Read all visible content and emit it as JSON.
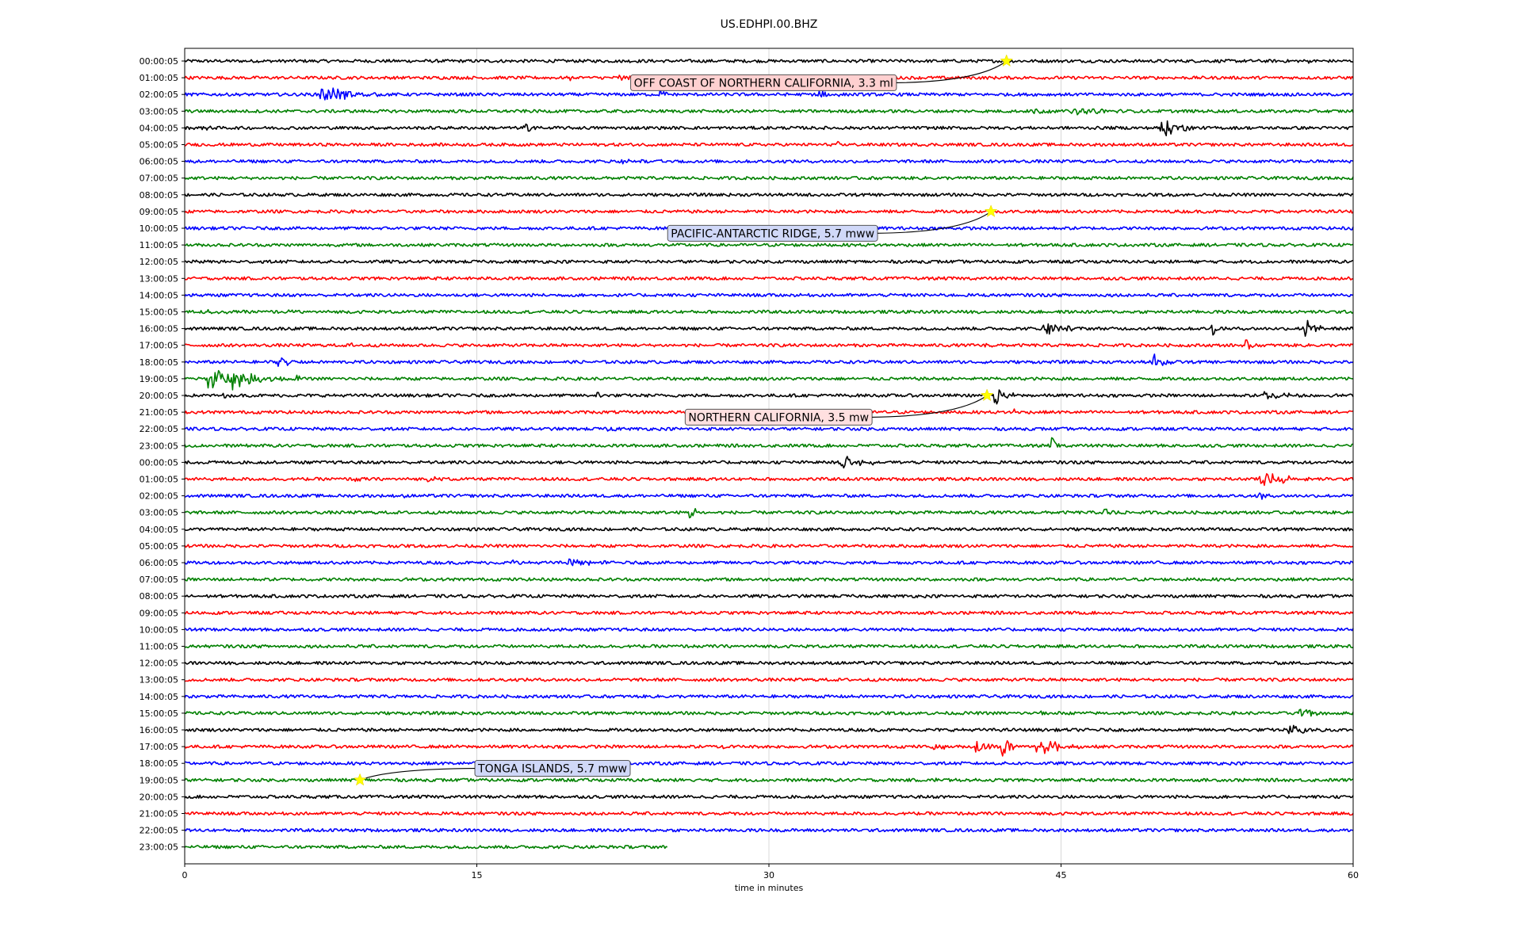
{
  "chart_data": {
    "type": "line",
    "subtype": "helicorder",
    "title": "US.EDHPI.00.BHZ",
    "xlabel": "time in minutes",
    "ylabel": "",
    "xlim": [
      0,
      60
    ],
    "x_ticks": [
      "0",
      "15",
      "30",
      "45",
      "60"
    ],
    "grid": "vertical lines at 15, 30, 45",
    "row_labels": [
      "00:00:05",
      "01:00:05",
      "02:00:05",
      "03:00:05",
      "04:00:05",
      "05:00:05",
      "06:00:05",
      "07:00:05",
      "08:00:05",
      "09:00:05",
      "10:00:05",
      "11:00:05",
      "12:00:05",
      "13:00:05",
      "14:00:05",
      "15:00:05",
      "16:00:05",
      "17:00:05",
      "18:00:05",
      "19:00:05",
      "20:00:05",
      "21:00:05",
      "22:00:05",
      "23:00:05",
      "00:00:05",
      "01:00:05",
      "02:00:05",
      "03:00:05",
      "04:00:05",
      "05:00:05",
      "06:00:05",
      "07:00:05",
      "08:00:05",
      "09:00:05",
      "10:00:05",
      "11:00:05",
      "12:00:05",
      "13:00:05",
      "14:00:05",
      "15:00:05",
      "16:00:05",
      "17:00:05",
      "18:00:05",
      "19:00:05",
      "20:00:05",
      "21:00:05",
      "22:00:05",
      "23:00:05"
    ],
    "row_colors": [
      "#000000",
      "#ff0000",
      "#0000ff",
      "#008000"
    ],
    "last_row_end_minute": 24.8,
    "bursts": [
      {
        "row": 0,
        "x": 22.2,
        "amp": 0.35,
        "dur": 0.3
      },
      {
        "row": 0,
        "x": 57.8,
        "amp": 0.25,
        "dur": 0.3
      },
      {
        "row": 1,
        "x": 19.8,
        "amp": 0.45,
        "dur": 0.8
      },
      {
        "row": 1,
        "x": 22.4,
        "amp": 0.6,
        "dur": 0.6
      },
      {
        "row": 2,
        "x": 7.0,
        "amp": 1.7,
        "dur": 3.0
      },
      {
        "row": 2,
        "x": 24.5,
        "amp": 1.0,
        "dur": 0.3
      },
      {
        "row": 2,
        "x": 32.5,
        "amp": 1.1,
        "dur": 1.2
      },
      {
        "row": 3,
        "x": 43.5,
        "amp": 0.6,
        "dur": 1.0
      },
      {
        "row": 3,
        "x": 45.5,
        "amp": 0.5,
        "dur": 4.0
      },
      {
        "row": 4,
        "x": 1.0,
        "amp": 0.5,
        "dur": 0.4
      },
      {
        "row": 4,
        "x": 17.5,
        "amp": 0.6,
        "dur": 1.5
      },
      {
        "row": 4,
        "x": 50.2,
        "amp": 1.8,
        "dur": 1.6
      },
      {
        "row": 5,
        "x": 33.5,
        "amp": 0.4,
        "dur": 0.5
      },
      {
        "row": 6,
        "x": 22.5,
        "amp": 0.4,
        "dur": 1.0
      },
      {
        "row": 6,
        "x": 24.5,
        "amp": 0.4,
        "dur": 1.0
      },
      {
        "row": 15,
        "x": 1.0,
        "amp": 0.3,
        "dur": 2.0
      },
      {
        "row": 15,
        "x": 5.0,
        "amp": 0.3,
        "dur": 0.8
      },
      {
        "row": 16,
        "x": 44.2,
        "amp": 1.3,
        "dur": 1.5
      },
      {
        "row": 16,
        "x": 52.8,
        "amp": 1.3,
        "dur": 0.5
      },
      {
        "row": 16,
        "x": 57.5,
        "amp": 1.9,
        "dur": 1.0
      },
      {
        "row": 17,
        "x": 8.5,
        "amp": 0.4,
        "dur": 0.3
      },
      {
        "row": 17,
        "x": 41.2,
        "amp": 1.3,
        "dur": 0.3
      },
      {
        "row": 17,
        "x": 54.5,
        "amp": 1.0,
        "dur": 0.5
      },
      {
        "row": 18,
        "x": 4.8,
        "amp": 1.3,
        "dur": 1.0
      },
      {
        "row": 18,
        "x": 49.7,
        "amp": 1.5,
        "dur": 1.2
      },
      {
        "row": 19,
        "x": 1.3,
        "amp": 2.2,
        "dur": 2.5
      },
      {
        "row": 19,
        "x": 2.5,
        "amp": 1.5,
        "dur": 2.5
      },
      {
        "row": 19,
        "x": 5.8,
        "amp": 0.5,
        "dur": 0.3
      },
      {
        "row": 20,
        "x": 2.0,
        "amp": 0.4,
        "dur": 0.5
      },
      {
        "row": 20,
        "x": 21.2,
        "amp": 0.5,
        "dur": 0.6
      },
      {
        "row": 20,
        "x": 41.6,
        "amp": 1.8,
        "dur": 1.0
      },
      {
        "row": 20,
        "x": 55.5,
        "amp": 0.7,
        "dur": 2.5
      },
      {
        "row": 21,
        "x": 42.7,
        "amp": 0.7,
        "dur": 0.3
      },
      {
        "row": 22,
        "x": 21.8,
        "amp": 0.6,
        "dur": 0.8
      },
      {
        "row": 23,
        "x": 44.6,
        "amp": 1.3,
        "dur": 0.3
      },
      {
        "row": 24,
        "x": 33.8,
        "amp": 1.0,
        "dur": 2.5
      },
      {
        "row": 24,
        "x": 5.0,
        "amp": 0.4,
        "dur": 0.5
      },
      {
        "row": 25,
        "x": 8.8,
        "amp": 0.5,
        "dur": 0.5
      },
      {
        "row": 25,
        "x": 12.5,
        "amp": 0.4,
        "dur": 1.0
      },
      {
        "row": 25,
        "x": 55.3,
        "amp": 1.3,
        "dur": 2.5
      },
      {
        "row": 26,
        "x": 11.0,
        "amp": 0.4,
        "dur": 0.4
      },
      {
        "row": 26,
        "x": 55.3,
        "amp": 0.7,
        "dur": 0.4
      },
      {
        "row": 27,
        "x": 26.0,
        "amp": 1.2,
        "dur": 1.0
      },
      {
        "row": 27,
        "x": 47.3,
        "amp": 0.9,
        "dur": 0.8
      },
      {
        "row": 30,
        "x": 19.8,
        "amp": 0.8,
        "dur": 2.0
      },
      {
        "row": 30,
        "x": 16.8,
        "amp": 0.4,
        "dur": 0.5
      },
      {
        "row": 39,
        "x": 57.2,
        "amp": 1.0,
        "dur": 1.8
      },
      {
        "row": 39,
        "x": 44.0,
        "amp": 0.4,
        "dur": 1.0
      },
      {
        "row": 40,
        "x": 56.8,
        "amp": 0.8,
        "dur": 2.4
      },
      {
        "row": 41,
        "x": 38.5,
        "amp": 1.0,
        "dur": 0.6
      },
      {
        "row": 41,
        "x": 40.7,
        "amp": 1.2,
        "dur": 1.0
      },
      {
        "row": 41,
        "x": 42.0,
        "amp": 1.9,
        "dur": 1.0
      },
      {
        "row": 41,
        "x": 43.8,
        "amp": 1.6,
        "dur": 2.2
      },
      {
        "row": 41,
        "x": 27.3,
        "amp": 0.5,
        "dur": 1.0
      },
      {
        "row": 43,
        "x": 38.5,
        "amp": 0.4,
        "dur": 1.0
      },
      {
        "row": 43,
        "x": 25.8,
        "amp": 0.3,
        "dur": 0.4
      }
    ],
    "events": [
      {
        "label": "OFF COAST OF NORTHERN CALIFORNIA, 3.3 ml",
        "row": 0,
        "minute": 42.2,
        "label_minute": 22.9,
        "label_row": 1.3,
        "box_color": "#ffd0d0"
      },
      {
        "label": "PACIFIC-ANTARCTIC RIDGE, 5.7 mww",
        "row": 9,
        "minute": 41.4,
        "label_minute": 24.8,
        "label_row": 10.3,
        "box_color": "#d0d8f8"
      },
      {
        "label": "NORTHERN CALIFORNIA, 3.5 mw",
        "row": 20,
        "minute": 41.2,
        "label_minute": 25.7,
        "label_row": 21.3,
        "box_color": "#ffe0e0"
      },
      {
        "label": "TONGA ISLANDS, 5.7 mww",
        "row": 43,
        "minute": 9.0,
        "label_minute": 14.9,
        "label_row": 42.3,
        "box_color": "#d0d8f8"
      }
    ]
  }
}
